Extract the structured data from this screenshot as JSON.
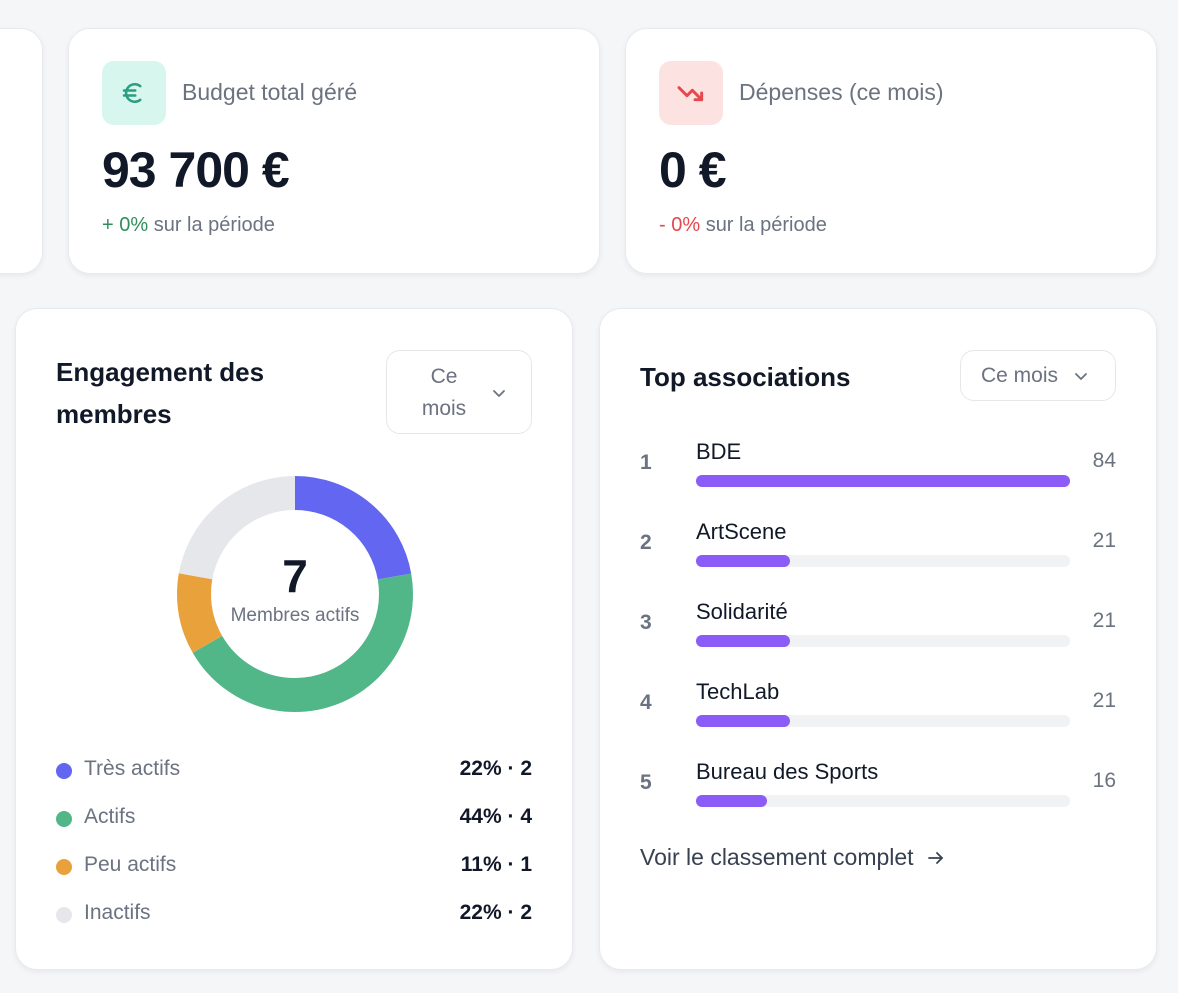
{
  "stats": [
    {
      "label": "Budget total géré",
      "value": "93 700 €",
      "delta": "+ 0%",
      "delta_suffix": "sur la période",
      "icon": "euro-icon",
      "accent": "#2a9d83",
      "icon_bg": "#d6f6ee"
    },
    {
      "label": "Dépenses (ce mois)",
      "value": "0 €",
      "delta": "- 0%",
      "delta_suffix": "sur la période",
      "icon": "trending-down-icon",
      "accent": "#e5484d",
      "icon_bg": "#fde2e2"
    }
  ],
  "engagement": {
    "title": "Engagement des membres",
    "filter": "Ce mois",
    "center_value": "7",
    "center_label": "Membres actifs",
    "segments": [
      {
        "label": "Très actifs",
        "value": "22% · 2",
        "fraction": 0.22,
        "color": "#6366f1"
      },
      {
        "label": "Actifs",
        "value": "44% · 4",
        "fraction": 0.44,
        "color": "#52b788"
      },
      {
        "label": "Peu actifs",
        "value": "11% · 1",
        "fraction": 0.11,
        "color": "#e9a23b"
      },
      {
        "label": "Inactifs",
        "value": "22% · 2",
        "fraction": 0.22,
        "color": "#e5e7eb"
      }
    ]
  },
  "top": {
    "title": "Top associations",
    "filter": "Ce mois",
    "max": 84,
    "items": [
      {
        "rank": "1",
        "name": "BDE",
        "count": "84",
        "value": 84
      },
      {
        "rank": "2",
        "name": "ArtScene",
        "count": "21",
        "value": 21
      },
      {
        "rank": "3",
        "name": "Solidarité",
        "count": "21",
        "value": 21
      },
      {
        "rank": "4",
        "name": "TechLab",
        "count": "21",
        "value": 21
      },
      {
        "rank": "5",
        "name": "Bureau des Sports",
        "count": "16",
        "value": 16
      }
    ],
    "link": "Voir le classement complet"
  }
}
